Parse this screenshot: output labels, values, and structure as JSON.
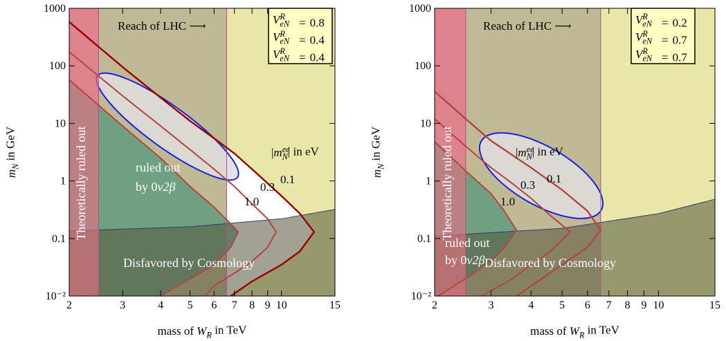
{
  "chart_data": [
    {
      "type": "line",
      "log_x": true,
      "log_y": true,
      "grid": false,
      "xlabel": [
        {
          "t": "mass of "
        },
        {
          "t": "W",
          "s": "it"
        },
        {
          "t": "R",
          "s": "isub"
        },
        {
          "t": " in TeV"
        }
      ],
      "ylabel": [
        {
          "t": "m",
          "s": "it"
        },
        {
          "t": "N",
          "s": "isub"
        },
        {
          "t": " in GeV"
        }
      ],
      "xlim": [
        2,
        15
      ],
      "ylim": [
        0.01,
        1000
      ],
      "xticks": [
        2,
        3,
        4,
        5,
        6,
        7,
        8,
        9,
        10,
        15
      ],
      "yticks": [
        {
          "value": 0.01,
          "label": "10⁻²"
        },
        0.1,
        1,
        10,
        100,
        1000
      ],
      "theory_bound": 2.5,
      "lhc_reach": 6.6,
      "cosmology": {
        "x": [
          2,
          5,
          10,
          15
        ],
        "values": [
          0.135,
          0.16,
          0.22,
          0.32
        ]
      },
      "mixing_symbol": [
        {
          "t": "V",
          "s": "it"
        },
        {
          "t": "R",
          "s": "isup"
        },
        {
          "t": "eN",
          "s": "isub"
        }
      ],
      "mixing_eq": "=",
      "mixing_values": [
        0.8,
        0.4,
        0.4
      ],
      "annotations": {
        "lhc": "Reach of LHC ⟶",
        "theory": "Theoretically ruled out",
        "dbd_1": "ruled out",
        "dbd_2": [
          {
            "t": "by 0"
          },
          {
            "t": "ν2β",
            "s": "it"
          }
        ],
        "cosmology": "Disfavored by Cosmology",
        "contour_title": [
          {
            "t": "|"
          },
          {
            "t": "m",
            "s": "it"
          },
          {
            "t": "ee",
            "s": "isup"
          },
          {
            "t": "N",
            "s": "isub"
          },
          {
            "t": "| in eV"
          }
        ]
      },
      "series": [
        {
          "name": "1.0",
          "color": "#b5453f",
          "x": [
            2,
            3,
            4,
            5,
            6,
            6.8,
            7.2,
            6.8,
            6,
            5,
            4
          ],
          "values": [
            57,
            9,
            2.5,
            0.8,
            0.35,
            0.18,
            0.13,
            0.07,
            0.035,
            0.02,
            0.01
          ]
        },
        {
          "name": "0.3",
          "color": "#b5453f",
          "x": [
            2,
            3,
            4,
            5,
            6,
            7,
            8,
            9,
            9.6,
            9,
            8,
            7,
            6,
            5.6
          ],
          "values": [
            175,
            30,
            9,
            3.5,
            1.6,
            0.8,
            0.4,
            0.22,
            0.13,
            0.07,
            0.04,
            0.025,
            0.015,
            0.01
          ]
        },
        {
          "name": "0.1",
          "color": "#9a0000",
          "x": [
            2,
            3,
            4,
            5,
            6,
            7,
            8,
            10,
            11.5,
            12.8,
            11.5,
            10,
            8,
            6.8
          ],
          "values": [
            580,
            95,
            28,
            11,
            5.5,
            3,
            1.6,
            0.55,
            0.27,
            0.13,
            0.06,
            0.035,
            0.018,
            0.01
          ]
        }
      ]
    },
    {
      "type": "line",
      "log_x": true,
      "log_y": true,
      "grid": false,
      "xlabel": [
        {
          "t": "mass of "
        },
        {
          "t": "W",
          "s": "it"
        },
        {
          "t": "R",
          "s": "isub"
        },
        {
          "t": " in TeV"
        }
      ],
      "ylabel": [
        {
          "t": "m",
          "s": "it"
        },
        {
          "t": "N",
          "s": "isub"
        },
        {
          "t": " in GeV"
        }
      ],
      "xlim": [
        2,
        15
      ],
      "ylim": [
        0.01,
        1000
      ],
      "xticks": [
        2,
        3,
        4,
        5,
        6,
        7,
        8,
        9,
        10,
        15
      ],
      "yticks": [
        {
          "value": 0.01,
          "label": "10⁻²"
        },
        0.1,
        1,
        10,
        100,
        1000
      ],
      "theory_bound": 2.5,
      "lhc_reach": 6.6,
      "cosmology": {
        "x": [
          2,
          5,
          10,
          15
        ],
        "values": [
          0.11,
          0.15,
          0.27,
          0.48
        ]
      },
      "mixing_symbol": [
        {
          "t": "V",
          "s": "it"
        },
        {
          "t": "R",
          "s": "isup"
        },
        {
          "t": "eN",
          "s": "isub"
        }
      ],
      "mixing_eq": "=",
      "mixing_values": [
        0.2,
        0.7,
        0.7
      ],
      "annotations": {
        "lhc": "Reach of LHC ⟶",
        "theory": "Theoretically ruled out",
        "dbd_1": "ruled out",
        "dbd_2": [
          {
            "t": "by 0"
          },
          {
            "t": "ν2β",
            "s": "it"
          }
        ],
        "cosmology": "Disfavored by Cosmology",
        "contour_title": [
          {
            "t": "|"
          },
          {
            "t": "m",
            "s": "it"
          },
          {
            "t": "ee",
            "s": "isup"
          },
          {
            "t": "N",
            "s": "isub"
          },
          {
            "t": "| in eV"
          }
        ]
      },
      "series": [
        {
          "name": "1.0",
          "color": "#b5453f",
          "x": [
            2,
            2.5,
            3,
            3.3,
            3.6,
            3.3,
            3,
            2.5,
            2.05
          ],
          "values": [
            4.8,
            1.5,
            0.6,
            0.3,
            0.14,
            0.07,
            0.04,
            0.02,
            0.01
          ]
        },
        {
          "name": "0.3",
          "color": "#b5453f",
          "x": [
            2,
            2.5,
            3,
            3.5,
            4,
            4.6,
            5.3,
            4.6,
            4,
            3.5,
            2.8
          ],
          "values": [
            12,
            4,
            1.7,
            0.9,
            0.5,
            0.25,
            0.13,
            0.06,
            0.035,
            0.02,
            0.01
          ]
        },
        {
          "name": "0.1",
          "color": "#b5453f",
          "x": [
            2,
            2.5,
            3,
            4,
            5,
            6,
            6.6,
            6,
            5,
            4,
            3.6
          ],
          "values": [
            36,
            12,
            5,
            1.7,
            0.7,
            0.3,
            0.14,
            0.07,
            0.035,
            0.015,
            0.01
          ]
        }
      ]
    }
  ]
}
